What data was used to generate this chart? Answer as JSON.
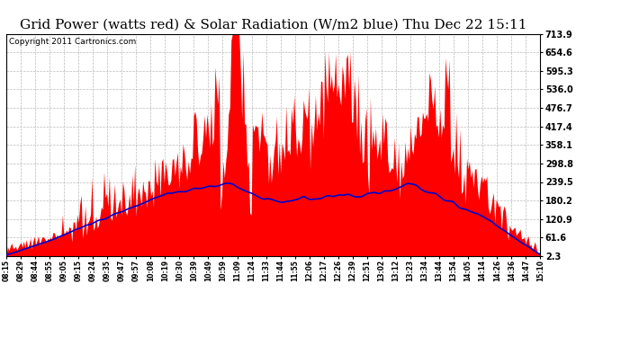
{
  "title": "Grid Power (watts red) & Solar Radiation (W/m2 blue) Thu Dec 22 15:11",
  "copyright": "Copyright 2011 Cartronics.com",
  "y_ticks": [
    2.3,
    61.6,
    120.9,
    180.2,
    239.5,
    298.8,
    358.1,
    417.4,
    476.7,
    536.0,
    595.3,
    654.6,
    713.9
  ],
  "ylim": [
    2.3,
    713.9
  ],
  "x_labels": [
    "08:15",
    "08:29",
    "08:44",
    "08:55",
    "09:05",
    "09:15",
    "09:24",
    "09:35",
    "09:47",
    "09:57",
    "10:08",
    "10:19",
    "10:30",
    "10:39",
    "10:49",
    "10:59",
    "11:09",
    "11:24",
    "11:33",
    "11:44",
    "11:55",
    "12:06",
    "12:17",
    "12:26",
    "12:39",
    "12:51",
    "13:02",
    "13:12",
    "13:23",
    "13:34",
    "13:44",
    "13:54",
    "14:05",
    "14:14",
    "14:26",
    "14:36",
    "14:47",
    "15:10"
  ],
  "bg_color": "#ffffff",
  "grid_color": "#bbbbbb",
  "fill_color": "#ff0000",
  "line_color": "#0000cc",
  "title_fontsize": 11,
  "copyright_fontsize": 6.5
}
